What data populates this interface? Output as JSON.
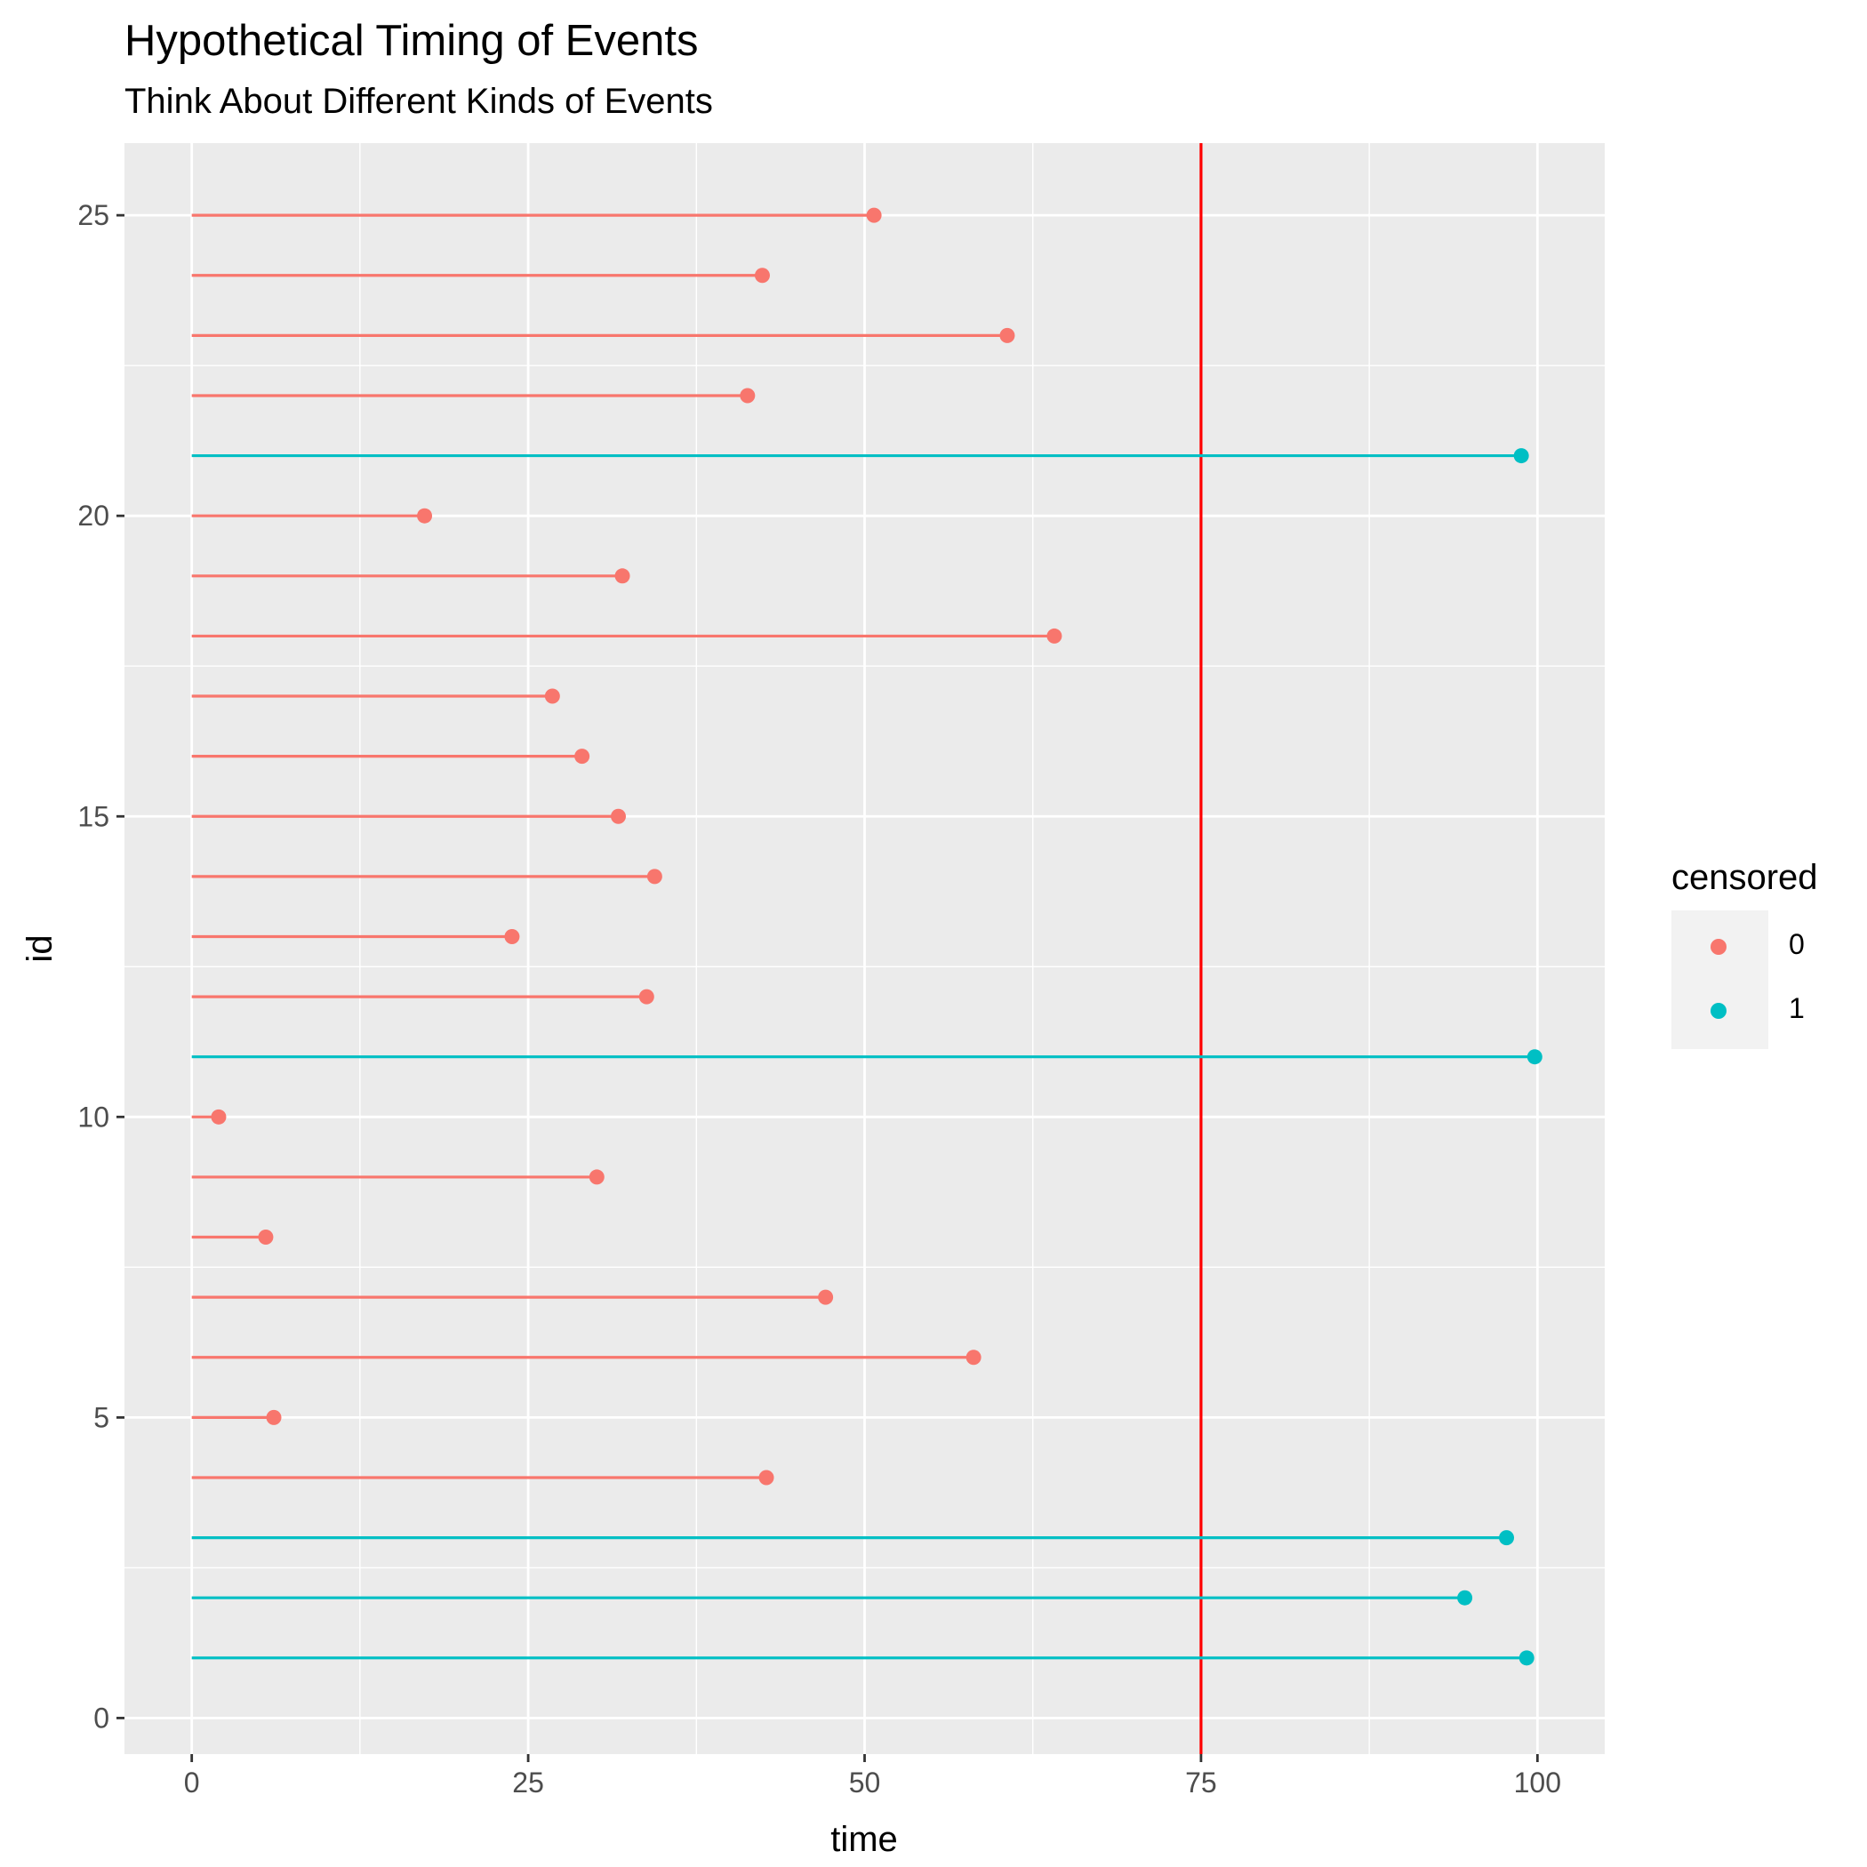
{
  "chart_data": {
    "type": "lollipop",
    "title": "Hypothetical Timing of Events",
    "subtitle": "Think About Different Kinds of Events",
    "xlabel": "time",
    "ylabel": "id",
    "xlim": [
      -5,
      105
    ],
    "ylim": [
      -0.6,
      26.2
    ],
    "xticks": [
      0,
      25,
      50,
      75,
      100
    ],
    "yticks": [
      0,
      5,
      10,
      15,
      20,
      25
    ],
    "reference_line": {
      "x": 75,
      "color": "#ff0000"
    },
    "legend": {
      "title": "censored",
      "position": "right",
      "entries": [
        {
          "label": "0",
          "color": "#F8766D"
        },
        {
          "label": "1",
          "color": "#00BFC4"
        }
      ]
    },
    "points": [
      {
        "id": 1,
        "time": 99.2,
        "censored": 1
      },
      {
        "id": 2,
        "time": 94.6,
        "censored": 1
      },
      {
        "id": 3,
        "time": 97.7,
        "censored": 1
      },
      {
        "id": 4,
        "time": 42.7,
        "censored": 0
      },
      {
        "id": 5,
        "time": 6.1,
        "censored": 0
      },
      {
        "id": 6,
        "time": 58.1,
        "censored": 0
      },
      {
        "id": 7,
        "time": 47.1,
        "censored": 0
      },
      {
        "id": 8,
        "time": 5.5,
        "censored": 0
      },
      {
        "id": 9,
        "time": 30.1,
        "censored": 0
      },
      {
        "id": 10,
        "time": 2.0,
        "censored": 0
      },
      {
        "id": 11,
        "time": 99.8,
        "censored": 1
      },
      {
        "id": 12,
        "time": 33.8,
        "censored": 0
      },
      {
        "id": 13,
        "time": 23.8,
        "censored": 0
      },
      {
        "id": 14,
        "time": 34.4,
        "censored": 0
      },
      {
        "id": 15,
        "time": 31.7,
        "censored": 0
      },
      {
        "id": 16,
        "time": 29.0,
        "censored": 0
      },
      {
        "id": 17,
        "time": 26.8,
        "censored": 0
      },
      {
        "id": 18,
        "time": 64.1,
        "censored": 0
      },
      {
        "id": 19,
        "time": 32.0,
        "censored": 0
      },
      {
        "id": 20,
        "time": 17.3,
        "censored": 0
      },
      {
        "id": 21,
        "time": 98.8,
        "censored": 1
      },
      {
        "id": 22,
        "time": 41.3,
        "censored": 0
      },
      {
        "id": 23,
        "time": 60.6,
        "censored": 0
      },
      {
        "id": 24,
        "time": 42.4,
        "censored": 0
      },
      {
        "id": 25,
        "time": 50.7,
        "censored": 0
      }
    ]
  }
}
